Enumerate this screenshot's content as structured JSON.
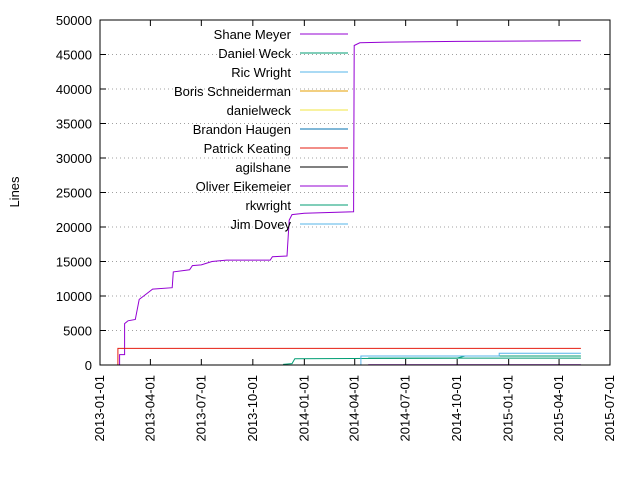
{
  "chart_data": {
    "type": "line",
    "title": "",
    "xlabel": "",
    "ylabel": "Lines",
    "ylim": [
      0,
      50000
    ],
    "yticks": [
      0,
      5000,
      10000,
      15000,
      20000,
      25000,
      30000,
      35000,
      40000,
      45000,
      50000
    ],
    "xlim": [
      "2013-01-01",
      "2015-07-01"
    ],
    "xticks": [
      "2013-01-01",
      "2013-04-01",
      "2013-07-01",
      "2013-10-01",
      "2014-01-01",
      "2014-04-01",
      "2014-07-01",
      "2014-10-01",
      "2015-01-01",
      "2015-04-01",
      "2015-07-01"
    ],
    "grid": "horizontal dotted",
    "legend_position": "top-left",
    "series": [
      {
        "name": "Shane Meyer",
        "color": "#9400d3",
        "points": [
          [
            "2013-02-05",
            0
          ],
          [
            "2013-02-05",
            1500
          ],
          [
            "2013-02-14",
            1500
          ],
          [
            "2013-02-14",
            6000
          ],
          [
            "2013-02-20",
            6400
          ],
          [
            "2013-03-05",
            6600
          ],
          [
            "2013-03-12",
            9500
          ],
          [
            "2013-03-20",
            10000
          ],
          [
            "2013-04-05",
            11000
          ],
          [
            "2013-05-10",
            11200
          ],
          [
            "2013-05-12",
            13500
          ],
          [
            "2013-06-10",
            13800
          ],
          [
            "2013-06-15",
            14400
          ],
          [
            "2013-07-01",
            14500
          ],
          [
            "2013-07-20",
            15000
          ],
          [
            "2013-08-15",
            15200
          ],
          [
            "2013-11-01",
            15200
          ],
          [
            "2013-11-05",
            15700
          ],
          [
            "2013-12-01",
            15800
          ],
          [
            "2013-12-05",
            21000
          ],
          [
            "2013-12-10",
            21800
          ],
          [
            "2014-01-01",
            22000
          ],
          [
            "2014-03-30",
            22200
          ],
          [
            "2014-03-31",
            46300
          ],
          [
            "2014-04-10",
            46700
          ],
          [
            "2014-06-01",
            46800
          ],
          [
            "2014-10-01",
            46900
          ],
          [
            "2015-05-10",
            47000
          ]
        ]
      },
      {
        "name": "Daniel Weck",
        "color": "#009e73",
        "points": [
          [
            "2013-11-10",
            0
          ],
          [
            "2013-11-25",
            0
          ],
          [
            "2013-11-25",
            100
          ],
          [
            "2013-12-10",
            200
          ],
          [
            "2013-12-15",
            900
          ],
          [
            "2014-06-01",
            950
          ],
          [
            "2014-10-01",
            1000
          ],
          [
            "2014-10-15",
            1300
          ],
          [
            "2015-01-01",
            1300
          ],
          [
            "2015-05-10",
            1300
          ]
        ]
      },
      {
        "name": "Ric Wright",
        "color": "#56b4e9",
        "points": [
          [
            "2014-04-10",
            0
          ],
          [
            "2014-04-12",
            0
          ],
          [
            "2014-04-12",
            1300
          ],
          [
            "2014-12-15",
            1300
          ],
          [
            "2014-12-15",
            1700
          ],
          [
            "2015-05-10",
            1700
          ]
        ]
      },
      {
        "name": "Boris Schneiderman",
        "color": "#e69f00",
        "points": [
          [
            "2014-03-15",
            0
          ],
          [
            "2015-05-10",
            0
          ]
        ]
      },
      {
        "name": "danielweck",
        "color": "#f0e442",
        "points": [
          [
            "2014-03-15",
            0
          ],
          [
            "2015-05-10",
            0
          ]
        ]
      },
      {
        "name": "Brandon Haugen",
        "color": "#0072b2",
        "points": [
          [
            "2014-03-20",
            0
          ],
          [
            "2015-05-10",
            0
          ]
        ]
      },
      {
        "name": "Patrick Keating",
        "color": "#e51e10",
        "points": [
          [
            "2013-01-28",
            0
          ],
          [
            "2013-02-02",
            0
          ],
          [
            "2013-02-02",
            2400
          ],
          [
            "2015-05-10",
            2400
          ]
        ]
      },
      {
        "name": "agilshane",
        "color": "#000000",
        "points": [
          [
            "2014-04-20",
            0
          ],
          [
            "2015-05-10",
            0
          ]
        ]
      },
      {
        "name": "Oliver Eikemeier",
        "color": "#9400d3",
        "points": [
          [
            "2014-04-25",
            50
          ],
          [
            "2015-05-10",
            50
          ]
        ]
      },
      {
        "name": "rkwright",
        "color": "#009e73",
        "points": [
          [
            "2014-04-25",
            1000
          ],
          [
            "2015-05-10",
            1000
          ]
        ]
      },
      {
        "name": "Jim Dovey",
        "color": "#56b4e9",
        "points": [
          [
            "2014-04-15",
            0
          ],
          [
            "2015-05-10",
            0
          ]
        ]
      }
    ]
  }
}
